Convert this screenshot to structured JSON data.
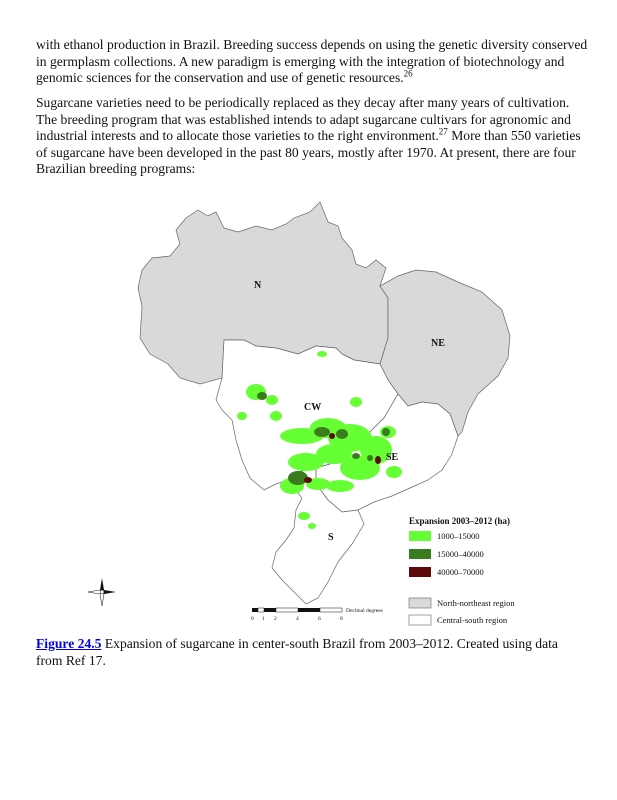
{
  "paragraph1": {
    "text": "with ethanol production in Brazil. Breeding success depends on using the genetic diversity conserved in germplasm collections. A new paradigm is emerging with the integration of biotechnology and genomic sciences for the conservation and use of genetic resources.",
    "ref": "26"
  },
  "paragraph2": {
    "text_a": "Sugarcane varieties need to be periodically replaced as they decay after many years of cultivation. The breeding program that was established intends to adapt sugarcane cultivars for agronomic and industrial interests and to allocate those varieties to the right environment.",
    "ref": "27",
    "text_b": " More than 550 varieties of sugarcane have been developed in the past 80 years, mostly after 1970. At present, there are four Brazilian breeding programs:"
  },
  "map": {
    "region_labels": {
      "n": "N",
      "ne": "NE",
      "cw": "CW",
      "se": "SE",
      "s": "S"
    },
    "legend": {
      "title": "Expansion 2003–2012 (ha)",
      "classes": [
        {
          "label": "1000–15000",
          "color": "#66ff33"
        },
        {
          "label": "15000–40000",
          "color": "#3a7d1e"
        },
        {
          "label": "40000–70000",
          "color": "#5c0a0a"
        }
      ],
      "regions": [
        {
          "label": "North-northeast region",
          "color": "#d9d9d9"
        },
        {
          "label": "Central-south region",
          "color": "#ffffff"
        }
      ]
    },
    "scale": {
      "ticks": [
        "0",
        "1",
        "2",
        "4",
        "6",
        "8"
      ],
      "unit": "Decimal degrees"
    }
  },
  "caption": {
    "figure_label": "Figure 24.5",
    "text": " Expansion of sugarcane in center-south Brazil from 2003–2012. Created using data from Ref 17."
  }
}
